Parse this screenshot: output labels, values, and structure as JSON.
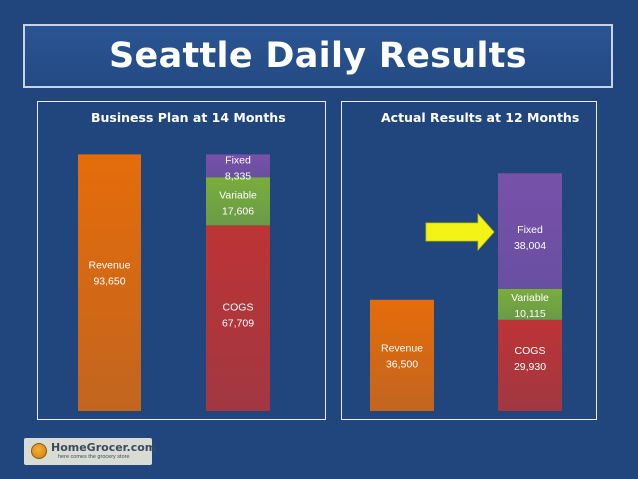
{
  "title": "Seattle Daily Results",
  "logo": {
    "name": "HomeGrocer.com",
    "tagline": "here comes the grocery store"
  },
  "chart_data": [
    {
      "type": "bar",
      "title": "Business Plan at 14 Months",
      "ylim": [
        0,
        100000
      ],
      "bars": [
        {
          "segments": [
            {
              "name": "Revenue",
              "value": 93650,
              "label": "93,650",
              "color": "#e56c0a"
            }
          ]
        },
        {
          "segments": [
            {
              "name": "COGS",
              "value": 67709,
              "label": "67,709",
              "color": "#bd3435"
            },
            {
              "name": "Variable",
              "value": 17606,
              "label": "17,606",
              "color": "#7aad3c"
            },
            {
              "name": "Fixed",
              "value": 8335,
              "label": "8,335",
              "color": "#7851a9"
            }
          ]
        }
      ]
    },
    {
      "type": "bar",
      "title": "Actual Results at 12 Months",
      "ylim": [
        0,
        85000
      ],
      "bars": [
        {
          "segments": [
            {
              "name": "Revenue",
              "value": 36500,
              "label": "36,500",
              "color": "#e56c0a"
            }
          ]
        },
        {
          "segments": [
            {
              "name": "COGS",
              "value": 29930,
              "label": "29,930",
              "color": "#bd3435"
            },
            {
              "name": "Variable",
              "value": 10115,
              "label": "10,115",
              "color": "#7aad3c"
            },
            {
              "name": "Fixed",
              "value": 38004,
              "label": "38,004",
              "color": "#7851a9"
            }
          ]
        }
      ],
      "annotation": "yellow-arrow-pointing-at-fixed"
    }
  ]
}
